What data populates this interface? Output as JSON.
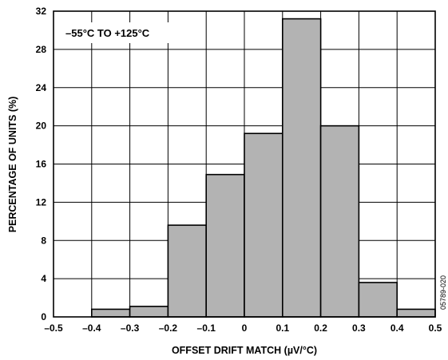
{
  "chart_data": {
    "type": "bar",
    "title": "",
    "xlabel": "OFFSET DRIFT MATCH (µV/°C)",
    "ylabel": "PERCENTAGE OF UNITS (%)",
    "annotation": "–55°C TO +125°C",
    "figure_code": "05789-020",
    "xlim": [
      -0.5,
      0.5
    ],
    "ylim": [
      0,
      32
    ],
    "x_ticks": [
      -0.5,
      -0.4,
      -0.3,
      -0.2,
      -0.1,
      0,
      0.1,
      0.2,
      0.3,
      0.4,
      0.5
    ],
    "x_tick_labels": [
      "–0.5",
      "–0.4",
      "–0.3",
      "–0.2",
      "–0.1",
      "0",
      "0.1",
      "0.2",
      "0.3",
      "0.4",
      "0.5"
    ],
    "y_ticks": [
      0,
      4,
      8,
      12,
      16,
      20,
      24,
      28,
      32
    ],
    "y_tick_labels": [
      "0",
      "4",
      "8",
      "12",
      "16",
      "20",
      "24",
      "28",
      "32"
    ],
    "grid": true,
    "bar_color": "#b3b3b3",
    "bins": [
      {
        "x0": -0.4,
        "x1": -0.3,
        "value": 0.8
      },
      {
        "x0": -0.3,
        "x1": -0.2,
        "value": 1.1
      },
      {
        "x0": -0.2,
        "x1": -0.1,
        "value": 9.6
      },
      {
        "x0": -0.1,
        "x1": 0.0,
        "value": 14.9
      },
      {
        "x0": 0.0,
        "x1": 0.1,
        "value": 19.2
      },
      {
        "x0": 0.1,
        "x1": 0.2,
        "value": 31.2
      },
      {
        "x0": 0.2,
        "x1": 0.3,
        "value": 20.0
      },
      {
        "x0": 0.3,
        "x1": 0.4,
        "value": 3.6
      },
      {
        "x0": 0.4,
        "x1": 0.5,
        "value": 0.8
      }
    ]
  }
}
